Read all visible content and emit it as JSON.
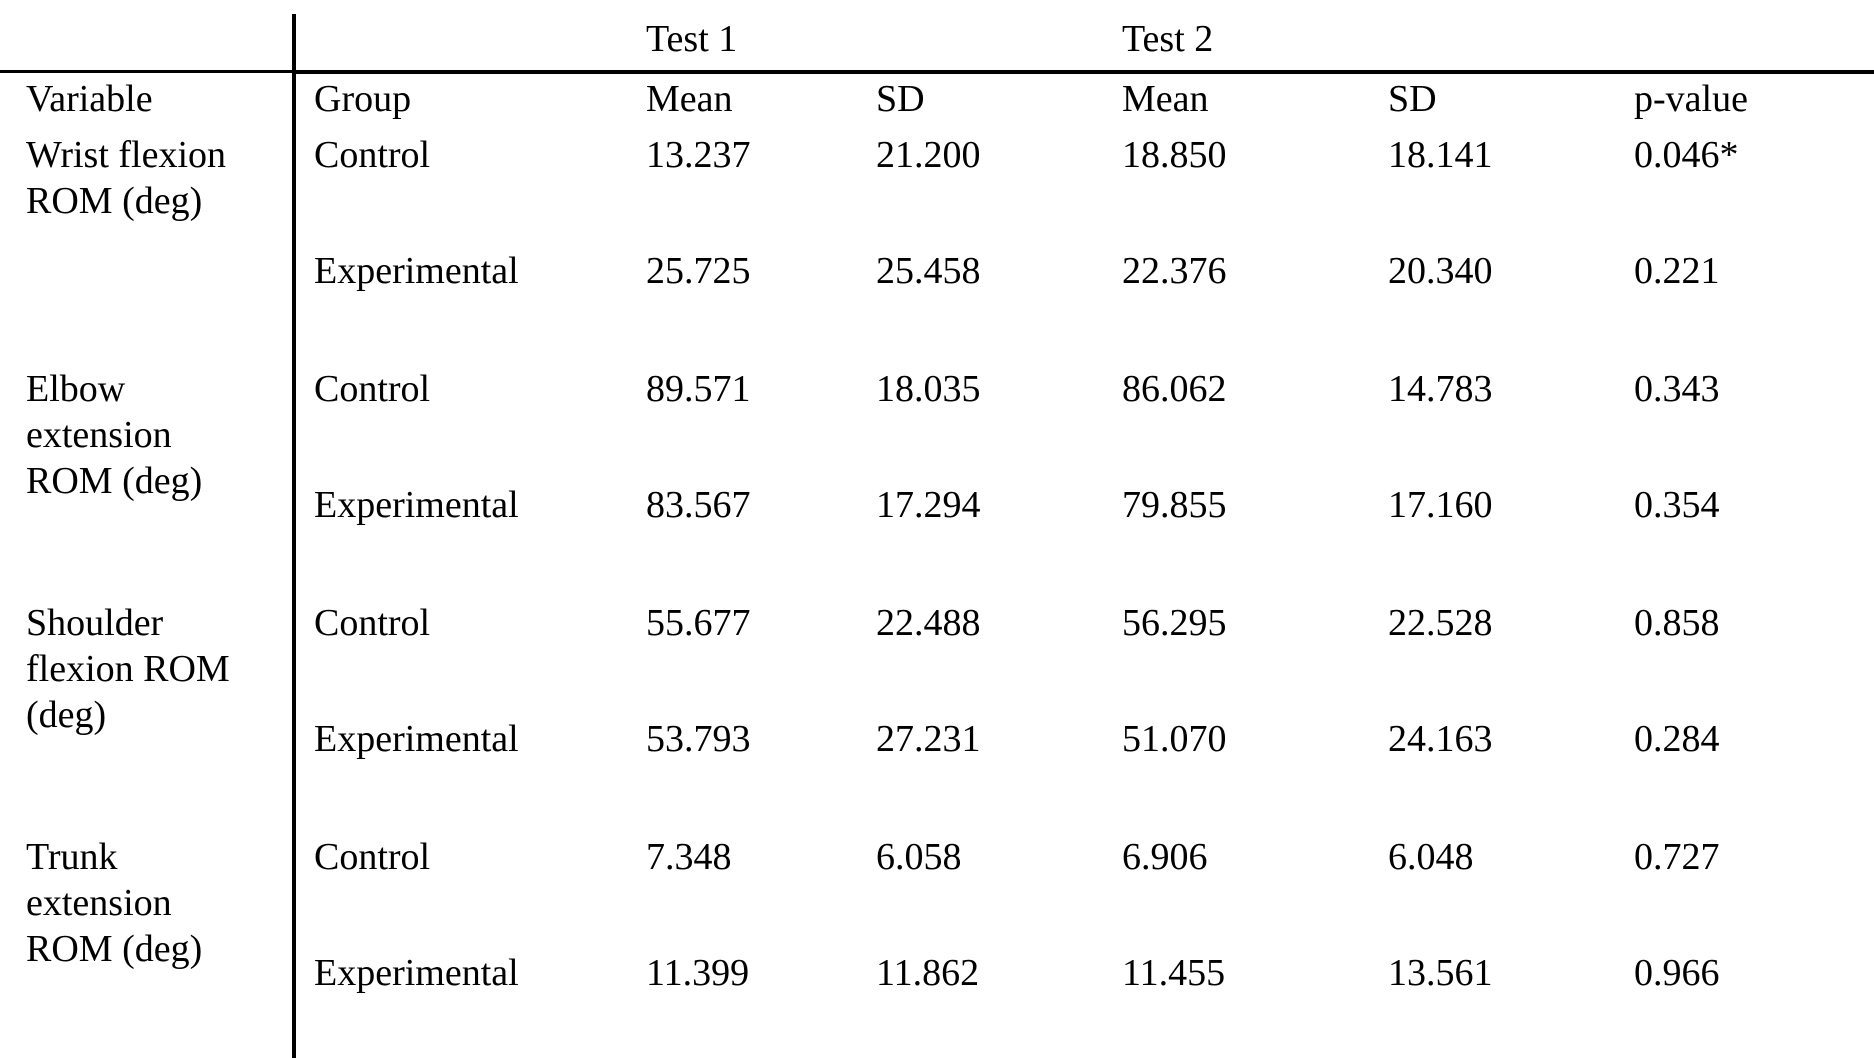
{
  "table": {
    "header_top": {
      "test1": "Test 1",
      "test2": "Test 2"
    },
    "columns": {
      "variable": "Variable",
      "group": "Group",
      "mean1": "Mean",
      "sd1": "SD",
      "mean2": "Mean",
      "sd2": "SD",
      "pvalue": "p-value"
    },
    "variables": [
      {
        "lines": [
          "Wrist flexion",
          "ROM (deg)"
        ],
        "rows": [
          {
            "group": "Control",
            "mean1": "13.237",
            "sd1": "21.200",
            "mean2": "18.850",
            "sd2": "18.141",
            "p": "0.046*"
          },
          {
            "group": "Experimental",
            "mean1": "25.725",
            "sd1": "25.458",
            "mean2": "22.376",
            "sd2": "20.340",
            "p": "0.221"
          }
        ]
      },
      {
        "lines": [
          "Elbow",
          "extension",
          "ROM (deg)"
        ],
        "rows": [
          {
            "group": "Control",
            "mean1": "89.571",
            "sd1": "18.035",
            "mean2": "86.062",
            "sd2": "14.783",
            "p": "0.343"
          },
          {
            "group": "Experimental",
            "mean1": "83.567",
            "sd1": "17.294",
            "mean2": "79.855",
            "sd2": "17.160",
            "p": "0.354"
          }
        ]
      },
      {
        "lines": [
          "Shoulder",
          "flexion ROM",
          "(deg)"
        ],
        "rows": [
          {
            "group": "Control",
            "mean1": "55.677",
            "sd1": "22.488",
            "mean2": "56.295",
            "sd2": "22.528",
            "p": "0.858"
          },
          {
            "group": "Experimental",
            "mean1": "53.793",
            "sd1": "27.231",
            "mean2": "51.070",
            "sd2": "24.163",
            "p": "0.284"
          }
        ]
      },
      {
        "lines": [
          "Trunk",
          "extension",
          "ROM (deg)"
        ],
        "rows": [
          {
            "group": "Control",
            "mean1": "7.348",
            "sd1": "6.058",
            "mean2": "6.906",
            "sd2": "6.048",
            "p": "0.727"
          },
          {
            "group": "Experimental",
            "mean1": "11.399",
            "sd1": "11.862",
            "mean2": "11.455",
            "sd2": "13.561",
            "p": "0.966"
          }
        ]
      }
    ]
  }
}
